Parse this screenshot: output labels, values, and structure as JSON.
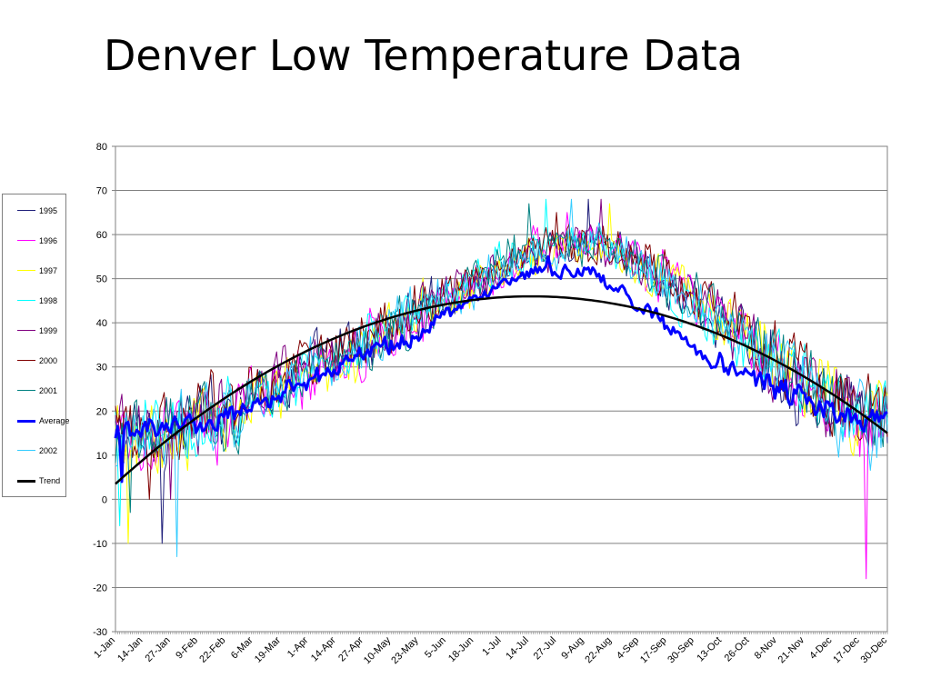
{
  "slide": {
    "title": "Denver Low Temperature Data"
  },
  "chart_data": {
    "type": "line",
    "title": "Denver Low Temperature Data",
    "xlabel": "",
    "ylabel": "",
    "ylim": [
      -30,
      80
    ],
    "yticks": [
      80,
      70,
      60,
      50,
      40,
      30,
      20,
      10,
      0,
      -10,
      -20,
      -30
    ],
    "xlim": [
      "1-Jan",
      "30-Dec"
    ],
    "x_tick_labels": [
      "1-Jan",
      "14-Jan",
      "27-Jan",
      "9-Feb",
      "22-Feb",
      "6-Mar",
      "19-Mar",
      "1-Apr",
      "14-Apr",
      "27-Apr",
      "10-May",
      "23-May",
      "5-Jun",
      "18-Jun",
      "1-Jul",
      "14-Jul",
      "27-Jul",
      "9-Aug",
      "22-Aug",
      "4-Sep",
      "17-Sep",
      "30-Sep",
      "13-Oct",
      "26-Oct",
      "8-Nov",
      "21-Nov",
      "4-Dec",
      "17-Dec",
      "30-Dec"
    ],
    "grid": {
      "horizontal": true,
      "vertical": false
    },
    "legend_position": "left",
    "series": [
      {
        "name": "1995",
        "color": "#1f1f7a",
        "width": 1,
        "mean": [
          14,
          19,
          26,
          33,
          40,
          48,
          56,
          58,
          50,
          39,
          28,
          18
        ],
        "amp": 8,
        "min": [
          -10,
          -7
        ],
        "max": [
          42,
          68
        ]
      },
      {
        "name": "1996",
        "color": "#ff00ff",
        "width": 1,
        "mean": [
          13,
          17,
          25,
          32,
          40,
          48,
          57,
          58,
          50,
          40,
          29,
          17
        ],
        "amp": 8,
        "min": [
          -18,
          -12
        ],
        "max": [
          40,
          65
        ]
      },
      {
        "name": "1997",
        "color": "#ffff00",
        "width": 1,
        "mean": [
          12,
          18,
          26,
          32,
          39,
          47,
          56,
          58,
          51,
          40,
          28,
          18
        ],
        "amp": 8,
        "min": [
          -10,
          5
        ],
        "max": [
          55,
          67
        ]
      },
      {
        "name": "1998",
        "color": "#00ffff",
        "width": 1,
        "mean": [
          14,
          18,
          24,
          33,
          41,
          48,
          58,
          59,
          50,
          38,
          28,
          18
        ],
        "amp": 8,
        "min": [
          -6,
          5
        ],
        "max": [
          52,
          68
        ]
      },
      {
        "name": "1999",
        "color": "#800080",
        "width": 1,
        "mean": [
          15,
          19,
          27,
          33,
          41,
          49,
          57,
          58,
          51,
          40,
          29,
          19
        ],
        "amp": 8,
        "min": [
          0,
          4
        ],
        "max": [
          61,
          68
        ]
      },
      {
        "name": "2000",
        "color": "#800000",
        "width": 1,
        "mean": [
          15,
          20,
          27,
          34,
          41,
          49,
          57,
          59,
          51,
          40,
          30,
          19
        ],
        "amp": 8,
        "min": [
          0,
          5
        ],
        "max": [
          58,
          65
        ]
      },
      {
        "name": "2001",
        "color": "#008080",
        "width": 1,
        "mean": [
          14,
          18,
          26,
          33,
          40,
          48,
          58,
          58,
          50,
          39,
          28,
          17
        ],
        "amp": 8,
        "min": [
          -3,
          5
        ],
        "max": [
          63,
          67
        ]
      },
      {
        "name": "Average",
        "color": "#0000ff",
        "width": 3,
        "mean": [
          15,
          17,
          23,
          30,
          36,
          45,
          52,
          51,
          40,
          30,
          24,
          18
        ],
        "amp": 2.5,
        "min": [
          4,
          13
        ],
        "max": [
          55,
          55
        ]
      },
      {
        "name": "2002",
        "color": "#33ccff",
        "width": 1,
        "mean": [
          13,
          17,
          25,
          32,
          40,
          48,
          57,
          58,
          49,
          39,
          28,
          16
        ],
        "amp": 8,
        "min": [
          -13,
          -6
        ],
        "max": [
          53,
          68
        ]
      },
      {
        "name": "Trend",
        "color": "#000000",
        "width": 2.5,
        "trend": true,
        "peak_day": 196,
        "peak_value": 46,
        "start_value": 3.5,
        "end_value": 15
      }
    ]
  }
}
